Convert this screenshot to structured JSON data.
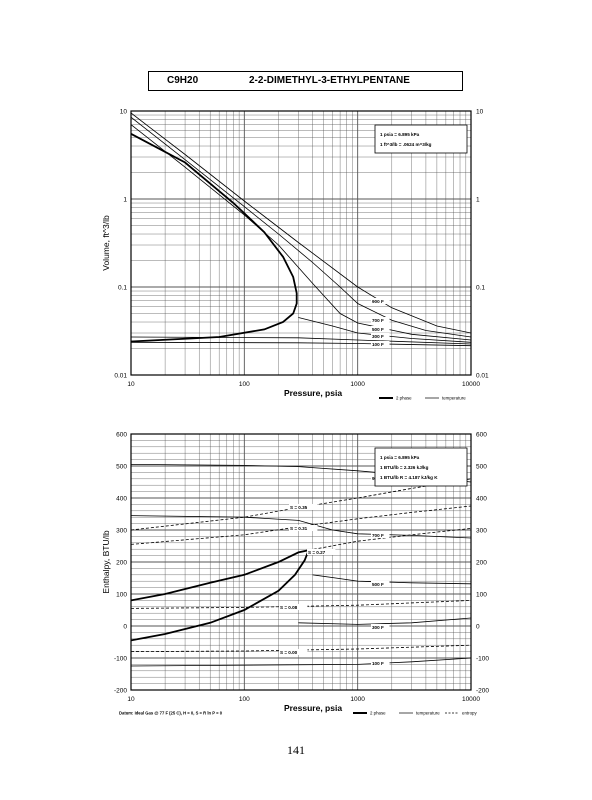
{
  "header": {
    "formula": "C9H20",
    "name": "2-2-DIMETHYL-3-ETHYLPENTANE"
  },
  "page_number": "141",
  "colors": {
    "ink": "#000000",
    "grid": "#555555",
    "background": "#ffffff"
  },
  "chart_data": [
    {
      "type": "line",
      "xlabel": "Pressure,  psia",
      "ylabel": "Volume, ft^3/lb",
      "xscale": "log",
      "yscale": "log",
      "xlim": [
        10,
        10000
      ],
      "ylim": [
        0.01,
        10
      ],
      "xticks": [
        {
          "v": 10,
          "label": "10"
        },
        {
          "v": 100,
          "label": "100"
        },
        {
          "v": 1000,
          "label": "1000"
        },
        {
          "v": 10000,
          "label": "10000"
        }
      ],
      "yticks": [
        {
          "v": 0.01,
          "label": "0.01"
        },
        {
          "v": 0.1,
          "label": "0.1"
        },
        {
          "v": 1,
          "label": "1"
        },
        {
          "v": 10,
          "label": "10"
        }
      ],
      "conversion_notes": [
        "1 psia  =  6.895 kPa",
        "1 ft^3/lb  =  .0624 m^3/kg"
      ],
      "legend": [
        {
          "label": "2 phase",
          "style": "thick"
        },
        {
          "label": "temperature",
          "style": "thin"
        }
      ],
      "series": [
        {
          "name": "2 phase",
          "style": "thick",
          "points": [
            [
              10,
              5.5
            ],
            [
              30,
              2.6
            ],
            [
              80,
              0.9
            ],
            [
              150,
              0.42
            ],
            [
              220,
              0.22
            ],
            [
              270,
              0.13
            ],
            [
              290,
              0.085
            ],
            [
              290,
              0.065
            ],
            [
              270,
              0.05
            ],
            [
              220,
              0.04
            ],
            [
              150,
              0.033
            ],
            [
              60,
              0.027
            ],
            [
              10,
              0.024
            ]
          ]
        },
        {
          "name": "100 F",
          "style": "thin",
          "label": "100 F",
          "points": [
            [
              10,
              0.0235
            ],
            [
              300,
              0.0232
            ],
            [
              1000,
              0.0228
            ],
            [
              10000,
              0.0215
            ]
          ]
        },
        {
          "name": "300 F",
          "style": "thin",
          "label": "300 F",
          "points": [
            [
              10,
              0.027
            ],
            [
              300,
              0.0265
            ],
            [
              1000,
              0.025
            ],
            [
              10000,
              0.0225
            ]
          ]
        },
        {
          "name": "500 F",
          "style": "thin",
          "label": "500 F",
          "points": [
            [
              300,
              0.045
            ],
            [
              600,
              0.036
            ],
            [
              1000,
              0.03
            ],
            [
              3000,
              0.026
            ],
            [
              10000,
              0.0235
            ]
          ]
        },
        {
          "name": "700 F",
          "style": "thin",
          "label": "700 F",
          "points": [
            [
              10,
              7.0
            ],
            [
              30,
              2.3
            ],
            [
              100,
              0.66
            ],
            [
              200,
              0.3
            ],
            [
              400,
              0.11
            ],
            [
              700,
              0.05
            ],
            [
              1000,
              0.039
            ],
            [
              3000,
              0.029
            ],
            [
              10000,
              0.025
            ]
          ]
        },
        {
          "name": "900 F",
          "style": "thin",
          "label": "900 F",
          "points": [
            [
              10,
              8.5
            ],
            [
              30,
              2.8
            ],
            [
              100,
              0.82
            ],
            [
              200,
              0.4
            ],
            [
              400,
              0.19
            ],
            [
              700,
              0.1
            ],
            [
              1000,
              0.065
            ],
            [
              2000,
              0.042
            ],
            [
              4000,
              0.032
            ],
            [
              10000,
              0.027
            ]
          ]
        },
        {
          "name": "",
          "style": "thin",
          "label": "",
          "points": [
            [
              10,
              9.5
            ],
            [
              30,
              3.2
            ],
            [
              100,
              0.95
            ],
            [
              300,
              0.32
            ],
            [
              1000,
              0.1
            ],
            [
              2000,
              0.058
            ],
            [
              5000,
              0.036
            ],
            [
              10000,
              0.03
            ]
          ]
        }
      ],
      "annotations": []
    },
    {
      "type": "line",
      "xlabel": "Pressure,  psia",
      "ylabel": "Enthalpy, BTU/lb",
      "xscale": "log",
      "yscale": "linear",
      "xlim": [
        10,
        10000
      ],
      "ylim": [
        -200,
        600
      ],
      "xticks": [
        {
          "v": 10,
          "label": "10"
        },
        {
          "v": 100,
          "label": "100"
        },
        {
          "v": 1000,
          "label": "1000"
        },
        {
          "v": 10000,
          "label": "10000"
        }
      ],
      "yticks": [
        {
          "v": -200,
          "label": "-200"
        },
        {
          "v": -100,
          "label": "-100"
        },
        {
          "v": 0,
          "label": "0"
        },
        {
          "v": 100,
          "label": "100"
        },
        {
          "v": 200,
          "label": "200"
        },
        {
          "v": 300,
          "label": "300"
        },
        {
          "v": 400,
          "label": "400"
        },
        {
          "v": 500,
          "label": "500"
        },
        {
          "v": 600,
          "label": "600"
        }
      ],
      "conversion_notes": [
        "1 psia  =  6.895 kPa",
        "1 BTU/lb  =  2.326 kJ/kg",
        "1 BTU/lb R  =  4.187 kJ/kg K"
      ],
      "legend": [
        {
          "label": "2 phase",
          "style": "thick"
        },
        {
          "label": "temperature",
          "style": "thin"
        },
        {
          "label": "entropy",
          "style": "dashed"
        }
      ],
      "datum": "Datum: Ideal Gas @ 77 F (25 C),  H = 0,  S = R ln P = 0",
      "series": [
        {
          "name": "2 phase",
          "style": "thick",
          "points": [
            [
              10,
              80
            ],
            [
              20,
              100
            ],
            [
              50,
              135
            ],
            [
              100,
              160
            ],
            [
              200,
              200
            ],
            [
              300,
              230
            ],
            [
              370,
              237
            ],
            [
              340,
              205
            ],
            [
              280,
              160
            ],
            [
              200,
              110
            ],
            [
              100,
              50
            ],
            [
              50,
              10
            ],
            [
              20,
              -25
            ],
            [
              10,
              -45
            ]
          ]
        },
        {
          "name": "900 F",
          "style": "thin",
          "label": "900 F",
          "points": [
            [
              10,
              505
            ],
            [
              100,
              502
            ],
            [
              300,
              498
            ],
            [
              1000,
              485
            ],
            [
              3000,
              470
            ],
            [
              10000,
              450
            ]
          ]
        },
        {
          "name": "700 F",
          "style": "thin",
          "label": "700 F",
          "points": [
            [
              10,
              345
            ],
            [
              100,
              340
            ],
            [
              300,
              330
            ],
            [
              600,
              300
            ],
            [
              1000,
              288
            ],
            [
              3000,
              283
            ],
            [
              10000,
              275
            ]
          ]
        },
        {
          "name": "500 F",
          "style": "thin",
          "label": "500 F",
          "points": [
            [
              400,
              160
            ],
            [
              700,
              148
            ],
            [
              1000,
              140
            ],
            [
              3000,
              135
            ],
            [
              10000,
              132
            ]
          ]
        },
        {
          "name": "300 F",
          "style": "thin",
          "label": "300 F",
          "points": [
            [
              300,
              10
            ],
            [
              1000,
              5
            ],
            [
              3000,
              10
            ],
            [
              10000,
              25
            ]
          ]
        },
        {
          "name": "100 F",
          "style": "thin",
          "label": "100 F",
          "points": [
            [
              10,
              -125
            ],
            [
              1000,
              -120
            ],
            [
              3000,
              -112
            ],
            [
              10000,
              -100
            ]
          ]
        },
        {
          "name": "S = 0.35",
          "style": "dashed",
          "label": "S = 0.35",
          "points": [
            [
              10,
              300
            ],
            [
              100,
              340
            ],
            [
              300,
              370
            ],
            [
              1000,
              400
            ],
            [
              3000,
              430
            ],
            [
              10000,
              460
            ]
          ]
        },
        {
          "name": "S = 0.31",
          "style": "dashed",
          "label": "S = 0.31",
          "points": [
            [
              10,
              255
            ],
            [
              100,
              285
            ],
            [
              300,
              310
            ],
            [
              1000,
              335
            ],
            [
              3000,
              355
            ],
            [
              10000,
              375
            ]
          ]
        },
        {
          "name": "S = 0.27",
          "style": "dashed",
          "label": "S = 0.27",
          "points": [
            [
              370,
              237
            ],
            [
              1000,
              265
            ],
            [
              3000,
              285
            ],
            [
              10000,
              305
            ]
          ]
        },
        {
          "name": "S = 0.08",
          "style": "dashed",
          "label": "S = 0.08",
          "points": [
            [
              10,
              55
            ],
            [
              100,
              58
            ],
            [
              1000,
              65
            ],
            [
              10000,
              80
            ]
          ]
        },
        {
          "name": "S = 0.00",
          "style": "dashed",
          "label": "S = 0.00",
          "points": [
            [
              10,
              -80
            ],
            [
              100,
              -78
            ],
            [
              1000,
              -72
            ],
            [
              10000,
              -60
            ]
          ]
        }
      ],
      "annotations": []
    }
  ]
}
